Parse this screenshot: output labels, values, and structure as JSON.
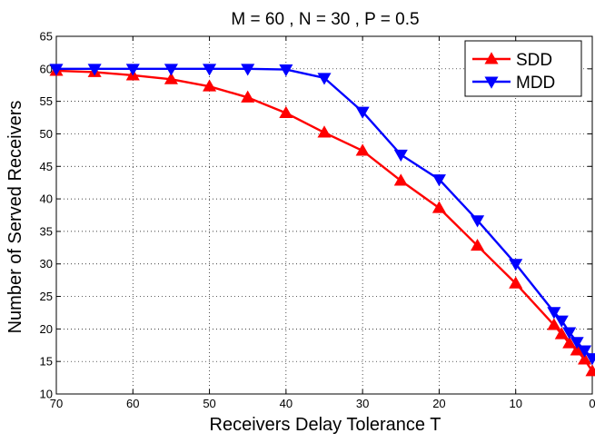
{
  "chart_data": {
    "type": "line",
    "title": "M = 60 , N = 30 , P = 0.5",
    "xlabel": "Receivers Delay Tolerance T",
    "ylabel": "Number of Served Receivers",
    "xlim": [
      70,
      0
    ],
    "ylim": [
      10,
      65
    ],
    "x_reversed": true,
    "xticks": [
      70,
      60,
      50,
      40,
      30,
      20,
      10,
      0
    ],
    "yticks": [
      10,
      15,
      20,
      25,
      30,
      35,
      40,
      45,
      50,
      55,
      60,
      65
    ],
    "grid": true,
    "legend_position": "top-right",
    "series": [
      {
        "name": "SDD",
        "color": "#ff0000",
        "marker": "triangle-up",
        "x": [
          70,
          65,
          60,
          55,
          50,
          45,
          40,
          35,
          30,
          25,
          20,
          15,
          10,
          5,
          4,
          3,
          2,
          1,
          0
        ],
        "y": [
          59.7,
          59.5,
          59.0,
          58.4,
          57.3,
          55.6,
          53.2,
          50.2,
          47.4,
          42.8,
          38.6,
          32.8,
          27.0,
          20.6,
          19.2,
          17.8,
          16.7,
          15.3,
          13.5
        ]
      },
      {
        "name": "MDD",
        "color": "#0000ff",
        "marker": "triangle-down",
        "x": [
          70,
          65,
          60,
          55,
          50,
          45,
          40,
          35,
          30,
          25,
          20,
          15,
          10,
          5,
          4,
          3,
          2,
          1,
          0
        ],
        "y": [
          60.0,
          60.0,
          60.0,
          60.0,
          60.0,
          60.0,
          59.9,
          58.6,
          53.4,
          46.8,
          43.0,
          36.7,
          30.0,
          22.6,
          21.3,
          19.5,
          18.0,
          16.7,
          15.5
        ]
      }
    ]
  }
}
